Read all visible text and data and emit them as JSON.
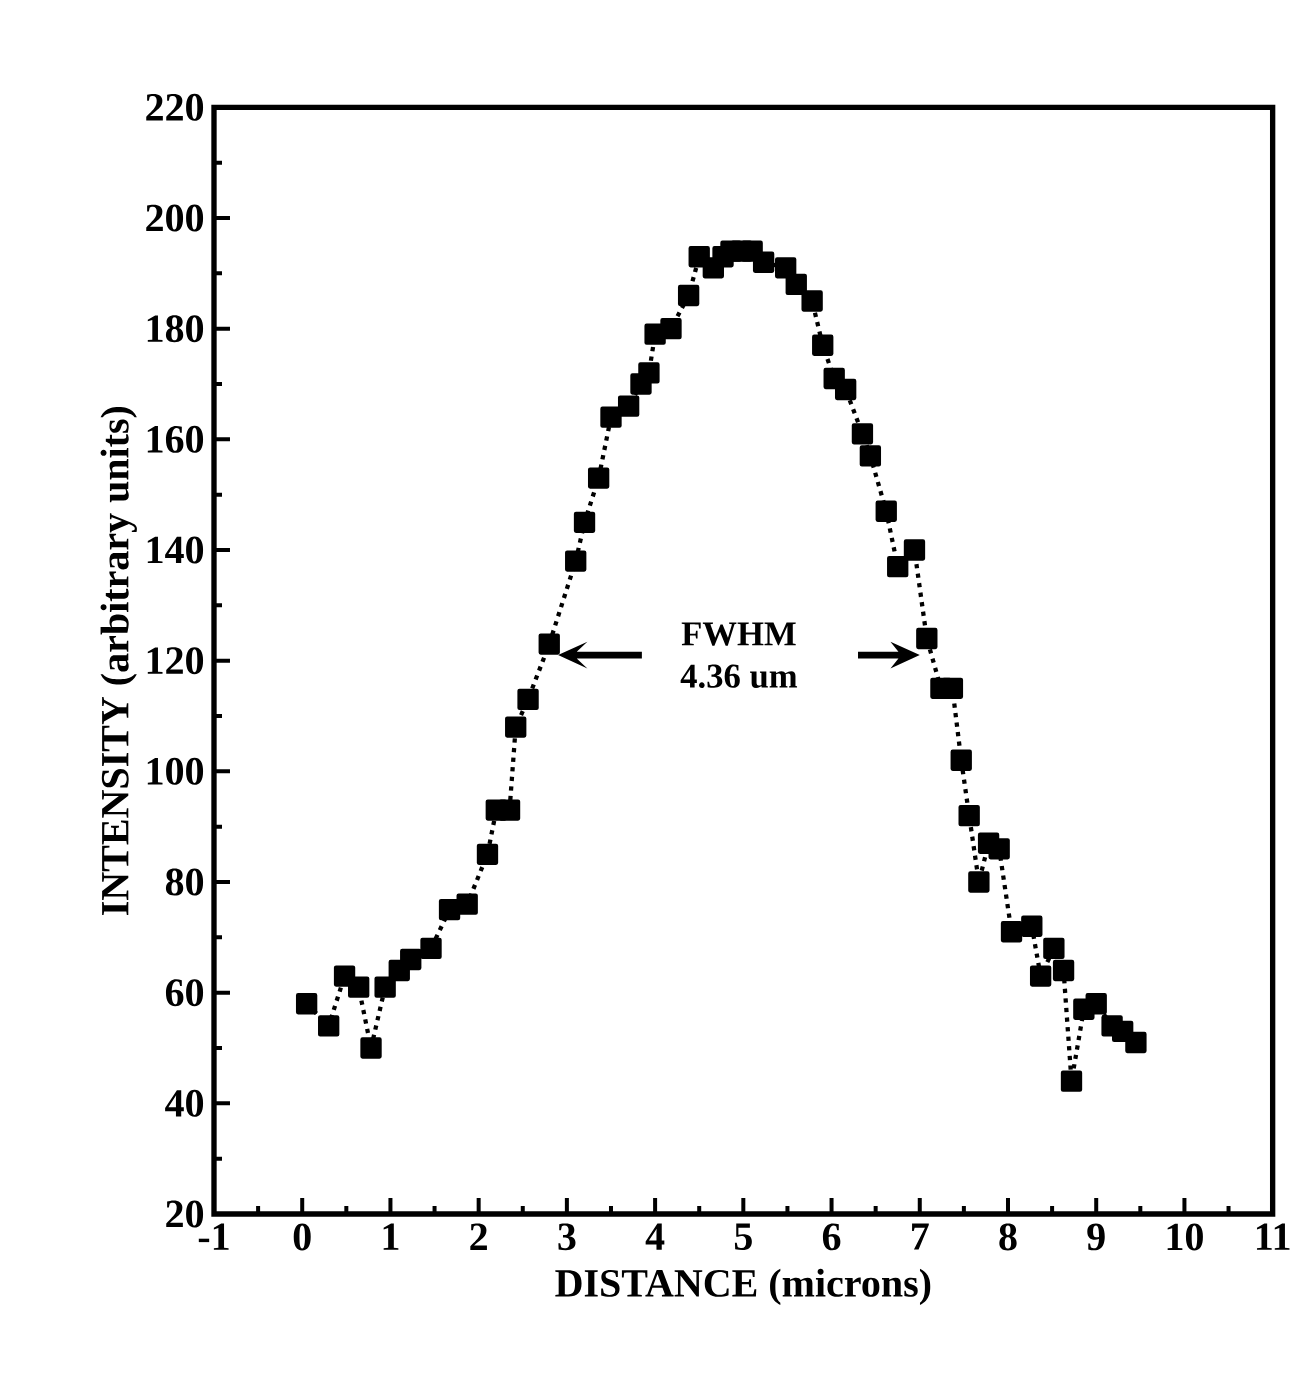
{
  "chart_data": {
    "type": "line",
    "xlabel": "DISTANCE  (microns)",
    "ylabel": "INTENSITY  (arbitrary  units)",
    "annotations": [
      "FWHM",
      "4.36  um"
    ],
    "xlim": [
      -1,
      11
    ],
    "xticks": [
      -1,
      0,
      1,
      2,
      3,
      4,
      5,
      6,
      7,
      8,
      9,
      10,
      11
    ],
    "ylim": [
      20,
      220
    ],
    "yticks": [
      20,
      40,
      60,
      80,
      100,
      120,
      140,
      160,
      180,
      200,
      220
    ],
    "grid": false,
    "marker": "square",
    "line_style": "dotted",
    "series": [
      {
        "color": "#000000",
        "x": [
          0.05,
          0.3,
          0.48,
          0.64,
          0.78,
          0.94,
          1.1,
          1.23,
          1.46,
          1.67,
          1.87,
          2.1,
          2.2,
          2.35,
          2.42,
          2.56,
          2.8,
          3.1,
          3.2,
          3.36,
          3.5,
          3.7,
          3.84,
          3.93,
          4.0,
          4.18,
          4.38,
          4.5,
          4.66,
          4.77,
          4.86,
          4.98,
          5.1,
          5.23,
          5.48,
          5.6,
          5.78,
          5.9,
          6.03,
          6.16,
          6.35,
          6.44,
          6.62,
          6.75,
          6.94,
          7.08,
          7.24,
          7.37,
          7.47,
          7.56,
          7.67,
          7.78,
          7.9,
          8.04,
          8.27,
          8.37,
          8.52,
          8.63,
          8.72,
          8.86,
          9.0,
          9.18,
          9.3,
          9.45
        ],
        "values": [
          58,
          54,
          63,
          61,
          50,
          61,
          64,
          66,
          68,
          75,
          76,
          85,
          93,
          93,
          108,
          113,
          123,
          138,
          145,
          153,
          164,
          166,
          170,
          172,
          179,
          180,
          186,
          193,
          191,
          193,
          194,
          194,
          194,
          192,
          191,
          188,
          185,
          177,
          171,
          169,
          161,
          157,
          147,
          137,
          140,
          124,
          115,
          115,
          102,
          92,
          80,
          87,
          86,
          71,
          72,
          63,
          68,
          64,
          44,
          57,
          58,
          54,
          53,
          51
        ]
      }
    ]
  }
}
